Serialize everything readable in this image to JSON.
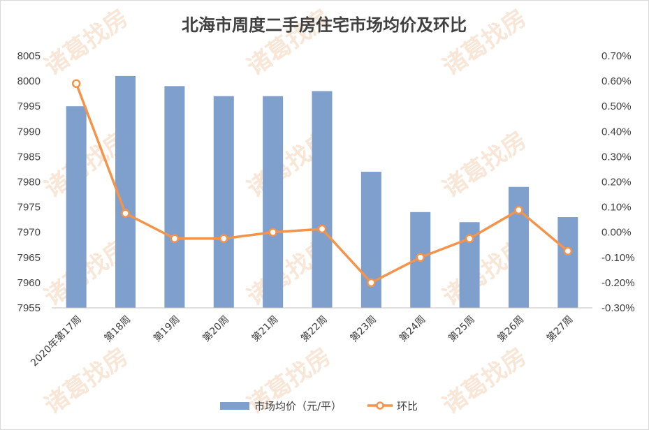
{
  "chart_data": {
    "type": "bar",
    "title": "北海市周度二手房住宅市场均价及环比",
    "categories": [
      "2020年第17周",
      "第18周",
      "第19周",
      "第20周",
      "第21周",
      "第22周",
      "第23周",
      "第24周",
      "第25周",
      "第26周",
      "第27周"
    ],
    "series": [
      {
        "name": "市场均价（元/平）",
        "type": "bar",
        "axis": "left",
        "color": "#7f9fcc",
        "values": [
          7995,
          8001,
          7999,
          7997,
          7997,
          7998,
          7982,
          7974,
          7972,
          7979,
          7973
        ]
      },
      {
        "name": "环比",
        "type": "line",
        "axis": "right",
        "color": "#f4944b",
        "values": [
          0.59,
          0.075,
          -0.025,
          -0.025,
          0.0,
          0.013,
          -0.2,
          -0.1,
          -0.025,
          0.088,
          -0.075
        ]
      }
    ],
    "y_left": {
      "lim": [
        7955,
        8005
      ],
      "ticks": [
        "7955",
        "7960",
        "7965",
        "7970",
        "7975",
        "7980",
        "7985",
        "7990",
        "7995",
        "8000",
        "8005"
      ]
    },
    "y_right": {
      "lim": [
        -0.3,
        0.7
      ],
      "ticks": [
        "-0.30%",
        "-0.20%",
        "-0.10%",
        "0.00%",
        "0.10%",
        "0.20%",
        "0.30%",
        "0.40%",
        "0.50%",
        "0.60%",
        "0.70%"
      ]
    },
    "grid": false,
    "legend_position": "bottom"
  },
  "watermark_text": "诸葛找房"
}
